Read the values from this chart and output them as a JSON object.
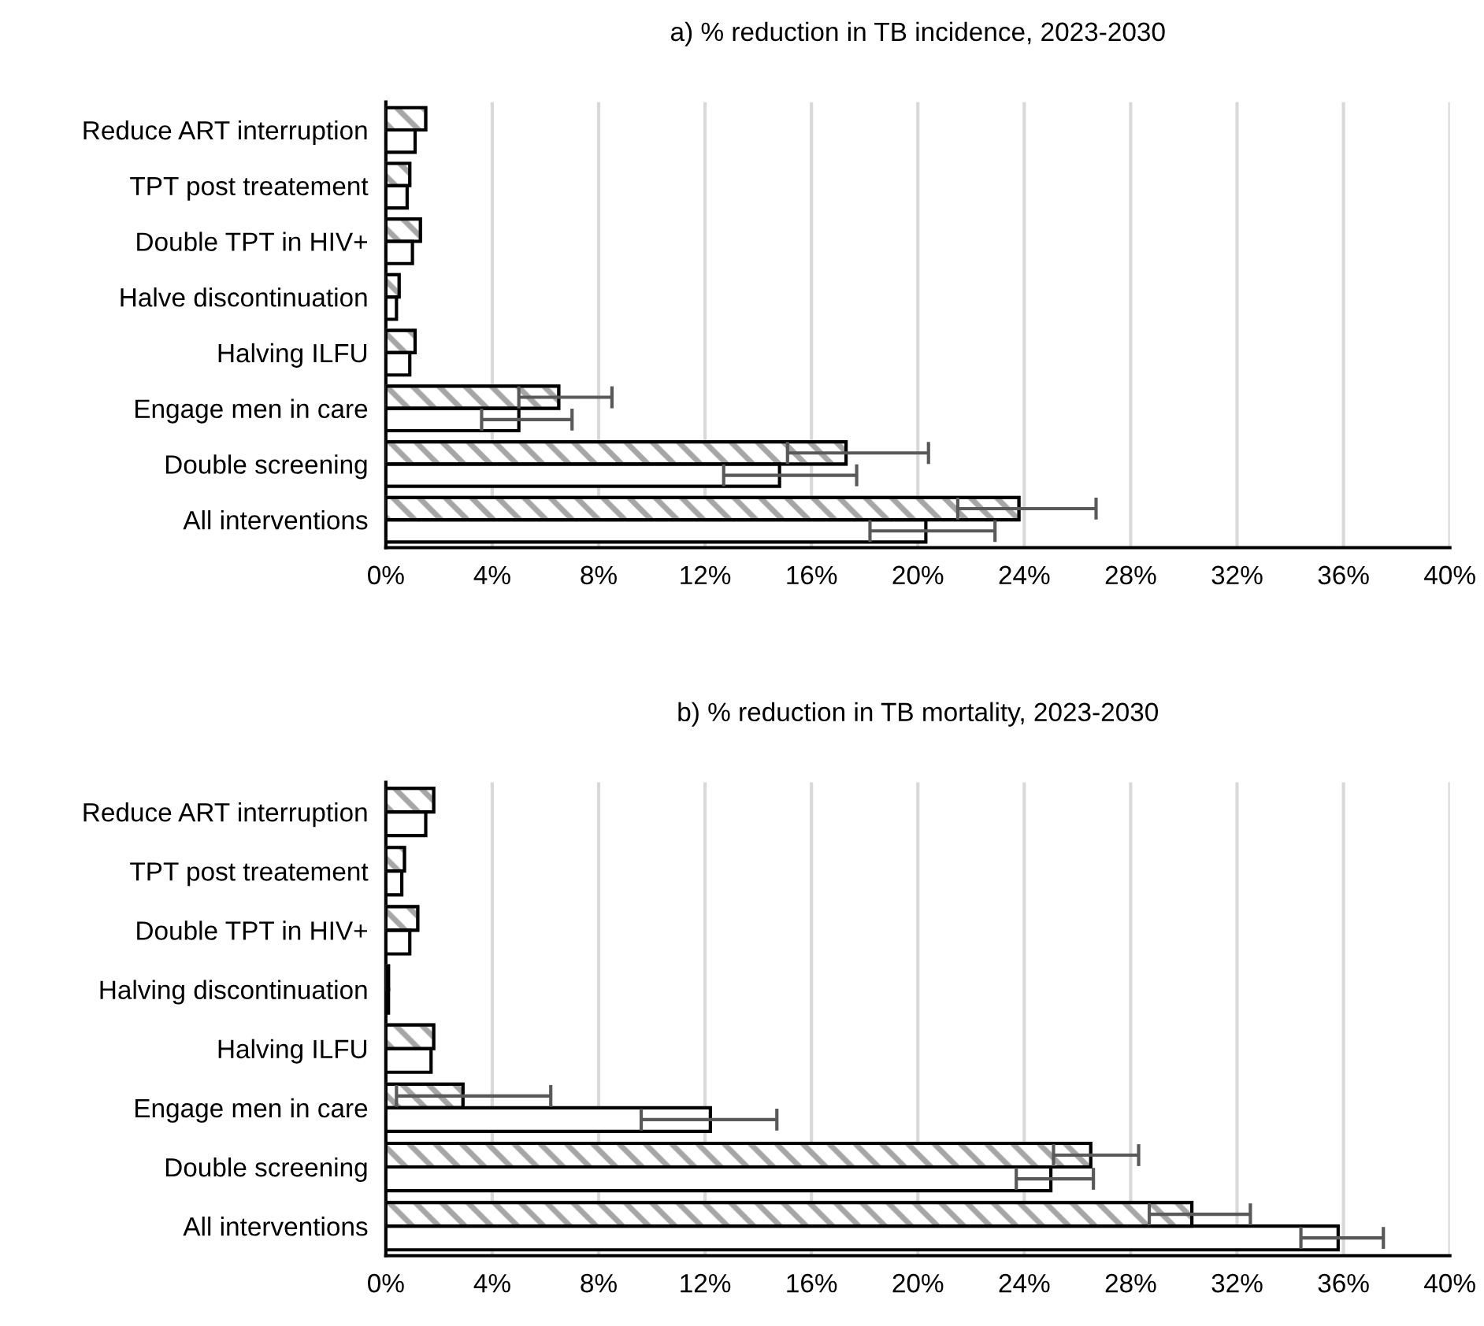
{
  "chart_data": [
    {
      "type": "bar",
      "orientation": "horizontal",
      "title": "a) % reduction in TB incidence, 2023-2030",
      "grid": "x",
      "legend": false,
      "categories": [
        "Reduce ART interruption",
        "TPT post treatement",
        "Double TPT in HIV+",
        "Halve discontinuation",
        "Halving ILFU",
        "Engage men in care",
        "Double screening",
        "All interventions"
      ],
      "xlim": [
        0,
        40
      ],
      "xticks": [
        {
          "value": 0,
          "label": "0%"
        },
        {
          "value": 4,
          "label": "4%"
        },
        {
          "value": 8,
          "label": "8%"
        },
        {
          "value": 12,
          "label": "12%"
        },
        {
          "value": 16,
          "label": "16%"
        },
        {
          "value": 20,
          "label": "20%"
        },
        {
          "value": 24,
          "label": "24%"
        },
        {
          "value": 28,
          "label": "28%"
        },
        {
          "value": 32,
          "label": "32%"
        },
        {
          "value": 36,
          "label": "36%"
        },
        {
          "value": 40,
          "label": "40%"
        }
      ],
      "series": [
        {
          "color": "#a6a6a6",
          "values": [
            1.5,
            0.9,
            1.3,
            0.5,
            1.1,
            6.5,
            17.3,
            23.8
          ],
          "errors": [
            null,
            null,
            null,
            null,
            null,
            [
              5.0,
              8.5
            ],
            [
              15.1,
              20.4
            ],
            [
              21.5,
              26.7
            ]
          ]
        },
        {
          "color": "#ffffff",
          "values": [
            1.1,
            0.8,
            1.0,
            0.4,
            0.9,
            5.0,
            14.8,
            20.3
          ],
          "errors": [
            null,
            null,
            null,
            null,
            null,
            [
              3.6,
              7.0
            ],
            [
              12.7,
              17.7
            ],
            [
              18.2,
              22.9
            ]
          ]
        }
      ]
    },
    {
      "type": "bar",
      "orientation": "horizontal",
      "title": "b) % reduction in TB mortality, 2023-2030",
      "grid": "x",
      "legend": false,
      "categories": [
        "Reduce ART interruption",
        "TPT post treatement",
        "Double TPT in HIV+",
        "Halving discontinuation",
        "Halving ILFU",
        "Engage men in care",
        "Double screening",
        "All interventions"
      ],
      "xlim": [
        0,
        40
      ],
      "xticks": [
        {
          "value": 0,
          "label": "0%"
        },
        {
          "value": 4,
          "label": "4%"
        },
        {
          "value": 8,
          "label": "8%"
        },
        {
          "value": 12,
          "label": "12%"
        },
        {
          "value": 16,
          "label": "16%"
        },
        {
          "value": 20,
          "label": "20%"
        },
        {
          "value": 24,
          "label": "24%"
        },
        {
          "value": 28,
          "label": "28%"
        },
        {
          "value": 32,
          "label": "32%"
        },
        {
          "value": 36,
          "label": "36%"
        },
        {
          "value": 40,
          "label": "40%"
        }
      ],
      "series": [
        {
          "color": "#a6a6a6",
          "values": [
            1.8,
            0.7,
            1.2,
            0.1,
            1.8,
            2.9,
            26.5,
            30.3
          ],
          "errors": [
            null,
            null,
            null,
            null,
            null,
            [
              0.4,
              6.2
            ],
            [
              25.1,
              28.3
            ],
            [
              28.7,
              32.5
            ]
          ]
        },
        {
          "color": "#ffffff",
          "values": [
            1.5,
            0.6,
            0.9,
            0.1,
            1.7,
            12.2,
            25.0,
            35.8
          ],
          "errors": [
            null,
            null,
            null,
            null,
            null,
            [
              9.6,
              14.7
            ],
            [
              23.7,
              26.6
            ],
            [
              34.4,
              37.5
            ]
          ]
        }
      ]
    }
  ]
}
